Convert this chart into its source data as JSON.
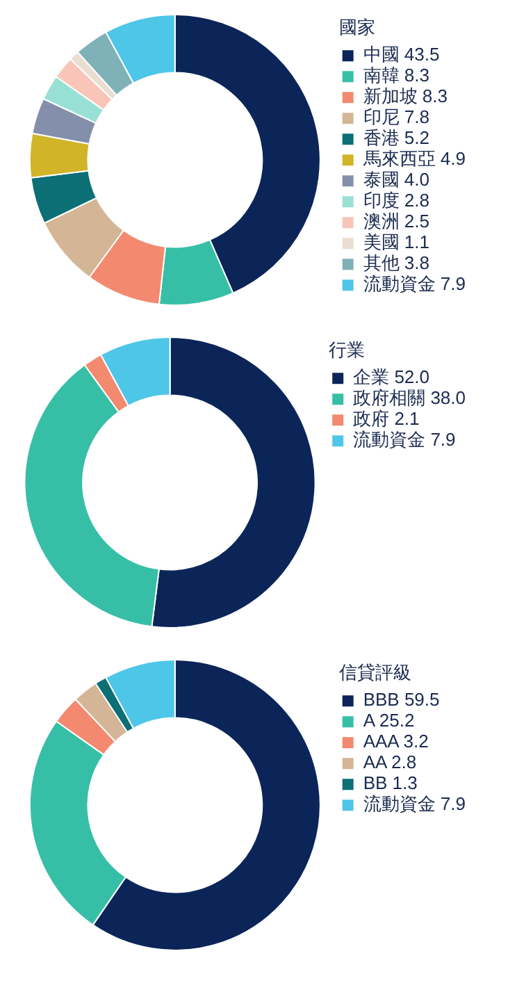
{
  "chart_data": [
    {
      "type": "donut",
      "legend_title": "國家",
      "legend": "right",
      "categories": [
        "中國 43.5",
        "南韓 8.3",
        "新加坡 8.3",
        "印尼 7.8",
        "香港 5.2",
        "馬來西亞 4.9",
        "泰國 4.0",
        "印度 2.8",
        "澳洲 2.5",
        "美國 1.1",
        "其他 3.8",
        "流動資金 7.9"
      ],
      "values": [
        43.5,
        8.3,
        8.3,
        7.8,
        5.2,
        4.9,
        4.0,
        2.8,
        2.5,
        1.1,
        3.8,
        7.9
      ],
      "colors": [
        "#0b2559",
        "#36bfa6",
        "#f3896f",
        "#d4b595",
        "#0b6f75",
        "#d1b428",
        "#8490ab",
        "#98e0d4",
        "#f8c5b8",
        "#ebddd0",
        "#7fb1b8",
        "#4ec6e8"
      ]
    },
    {
      "type": "donut",
      "legend_title": "行業",
      "legend": "right",
      "categories": [
        "企業 52.0",
        "政府相關 38.0",
        "政府 2.1",
        "流動資金 7.9"
      ],
      "values": [
        52.0,
        38.0,
        2.1,
        7.9
      ],
      "colors": [
        "#0b2559",
        "#36bfa6",
        "#f3896f",
        "#4ec6e8"
      ]
    },
    {
      "type": "donut",
      "legend_title": "信貸評級",
      "legend": "right",
      "categories": [
        "BBB 59.5",
        "A 25.2",
        "AAA 3.2",
        "AA 2.8",
        "BB 1.3",
        "流動資金 7.9"
      ],
      "values": [
        59.5,
        25.2,
        3.2,
        2.8,
        1.3,
        7.9
      ],
      "colors": [
        "#0b2559",
        "#36bfa6",
        "#f3896f",
        "#d4b595",
        "#0b6f75",
        "#4ec6e8"
      ]
    }
  ]
}
